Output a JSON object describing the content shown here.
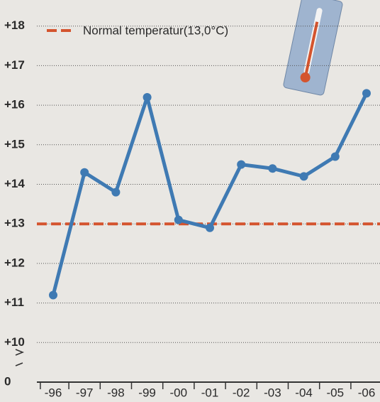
{
  "chart_data": {
    "type": "line",
    "categories": [
      "-96",
      "-97",
      "-98",
      "-99",
      "-00",
      "-01",
      "-02",
      "-03",
      "-04",
      "-05",
      "-06"
    ],
    "values": [
      11.2,
      14.3,
      13.8,
      16.2,
      13.1,
      12.9,
      14.5,
      14.4,
      14.2,
      14.7,
      16.3
    ],
    "color": "#3f7ab3",
    "ylim": [
      9,
      18.3
    ],
    "axis_break": true,
    "yticks": [
      0,
      {
        "value": 10,
        "label": "+10"
      },
      {
        "value": 11,
        "label": "+11"
      },
      {
        "value": 12,
        "label": "+12"
      },
      {
        "value": 13,
        "label": "+13"
      },
      {
        "value": 14,
        "label": "+14"
      },
      {
        "value": 15,
        "label": "+15"
      },
      {
        "value": 16,
        "label": "+16"
      },
      {
        "value": 17,
        "label": "+17"
      },
      {
        "value": 18,
        "label": "+18"
      }
    ],
    "grid": true,
    "reference_line": {
      "value": 13,
      "label": "Normal temperatur(13,0°C)",
      "color": "#d4542e"
    }
  }
}
